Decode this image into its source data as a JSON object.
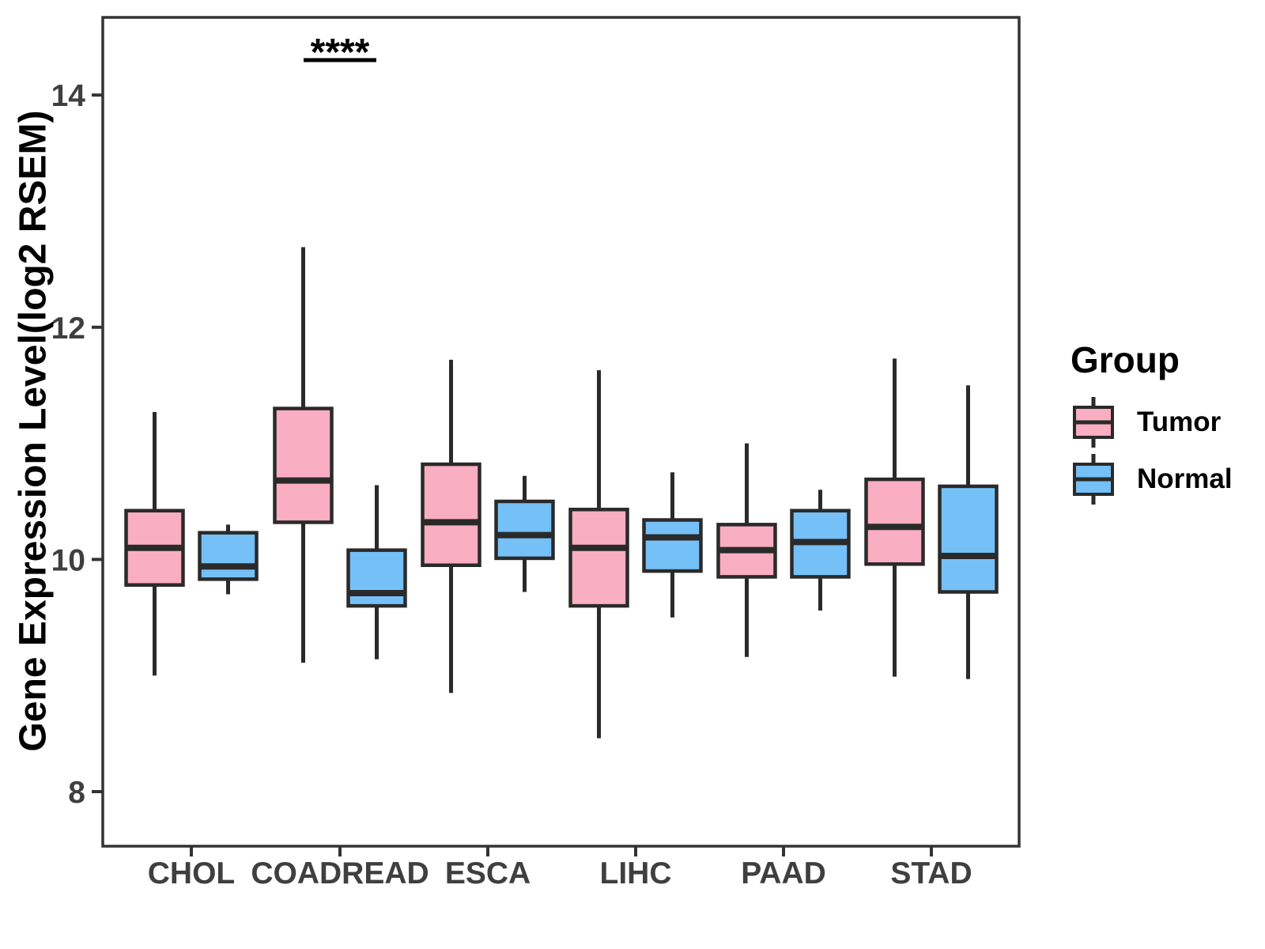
{
  "chart_data": {
    "type": "box",
    "title": "",
    "xlabel": "",
    "ylabel": "Gene Expression Level(log2 RSEM)",
    "categories": [
      "CHOL",
      "COADREAD",
      "ESCA",
      "LIHC",
      "PAAD",
      "STAD"
    ],
    "y_ticks": [
      8,
      10,
      12,
      14
    ],
    "y_range_shown": [
      7.5,
      14.7
    ],
    "grid": "off",
    "legend": {
      "title": "Group",
      "position": "right"
    },
    "colors": {
      "tumor_fill": "#FAAEC1",
      "normal_fill": "#75C0F6",
      "box_outline": "#2A2A2A",
      "axis_line": "#333333",
      "tick_label": "#3F3F3F",
      "annotation": "#000000"
    },
    "series": [
      {
        "name": "Tumor",
        "fill": "#FAAEC1",
        "boxes": [
          {
            "category": "CHOL",
            "low": 9.0,
            "q1": 9.78,
            "median": 10.1,
            "q3": 10.42,
            "high": 11.27
          },
          {
            "category": "COADREAD",
            "low": 9.11,
            "q1": 10.32,
            "median": 10.68,
            "q3": 11.3,
            "high": 12.69
          },
          {
            "category": "ESCA",
            "low": 8.85,
            "q1": 9.95,
            "median": 10.32,
            "q3": 10.82,
            "high": 11.72
          },
          {
            "category": "LIHC",
            "low": 8.46,
            "q1": 9.6,
            "median": 10.1,
            "q3": 10.43,
            "high": 11.63
          },
          {
            "category": "PAAD",
            "low": 9.16,
            "q1": 9.85,
            "median": 10.08,
            "q3": 10.3,
            "high": 11.0
          },
          {
            "category": "STAD",
            "low": 8.99,
            "q1": 9.96,
            "median": 10.28,
            "q3": 10.69,
            "high": 11.73
          }
        ]
      },
      {
        "name": "Normal",
        "fill": "#75C0F6",
        "boxes": [
          {
            "category": "CHOL",
            "low": 9.7,
            "q1": 9.83,
            "median": 9.94,
            "q3": 10.23,
            "high": 10.3
          },
          {
            "category": "COADREAD",
            "low": 9.14,
            "q1": 9.6,
            "median": 9.71,
            "q3": 10.08,
            "high": 10.64
          },
          {
            "category": "ESCA",
            "low": 9.72,
            "q1": 10.01,
            "median": 10.21,
            "q3": 10.5,
            "high": 10.72
          },
          {
            "category": "LIHC",
            "low": 9.5,
            "q1": 9.9,
            "median": 10.19,
            "q3": 10.34,
            "high": 10.75
          },
          {
            "category": "PAAD",
            "low": 9.56,
            "q1": 9.85,
            "median": 10.15,
            "q3": 10.42,
            "high": 10.6
          },
          {
            "category": "STAD",
            "low": 8.97,
            "q1": 9.72,
            "median": 10.03,
            "q3": 10.63,
            "high": 11.5
          }
        ]
      }
    ],
    "significance": {
      "label": "****",
      "category": "COADREAD"
    }
  }
}
